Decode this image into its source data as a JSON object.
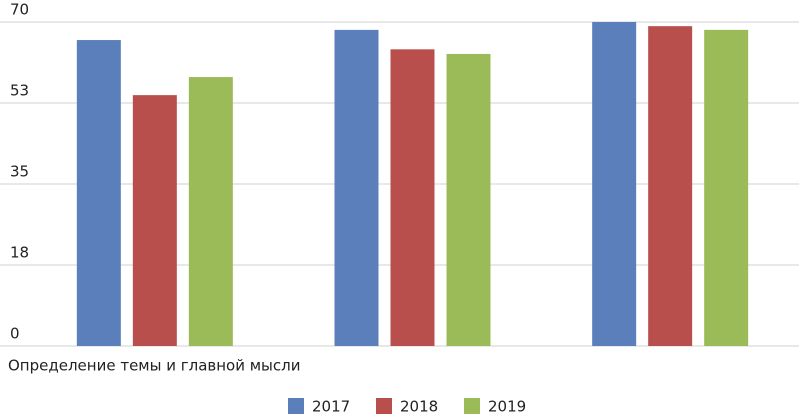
{
  "chart_data": {
    "type": "bar",
    "categories": [
      "Определение темы и главной мысли",
      null,
      null
    ],
    "series": [
      {
        "name": "2017",
        "color": "#5b7fba",
        "values": [
          66.1,
          68.3,
          70
        ]
      },
      {
        "name": "2018",
        "color": "#b94f4c",
        "values": [
          54.2,
          64.1,
          69.1
        ]
      },
      {
        "name": "2019",
        "color": "#9bbb59",
        "values": [
          58.1,
          63.1,
          68.3
        ]
      }
    ],
    "ylim": [
      0,
      70
    ],
    "yticks": [
      0,
      {
        "value": 17.5,
        "label": "18"
      },
      35,
      {
        "value": 52.5,
        "label": "53"
      },
      70
    ],
    "grid": true
  }
}
